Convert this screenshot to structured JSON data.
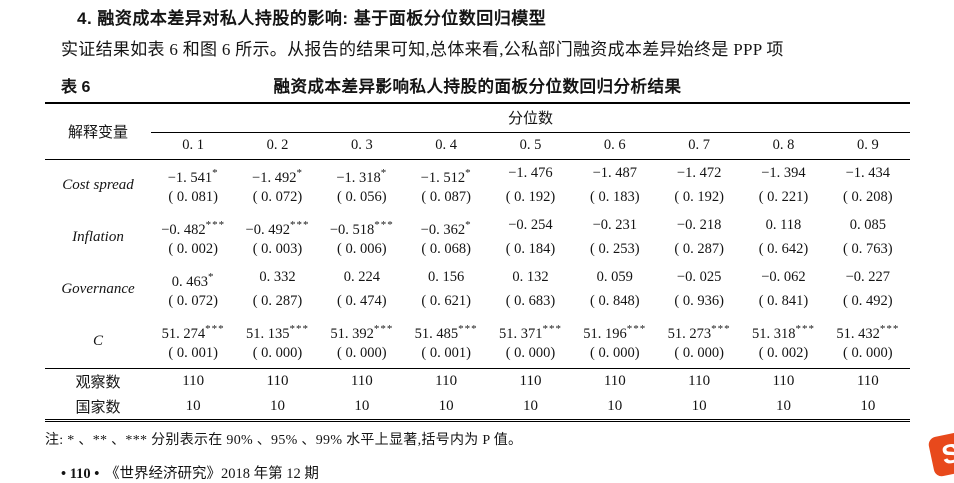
{
  "document": {
    "section_heading": "4. 融资成本差异对私人持股的影响: 基于面板分位数回归模型",
    "paragraph": "实证结果如表 6 和图 6 所示。从报告的结果可知,总体来看,公私部门融资成本差异始终是 PPP 项",
    "table_label": "表 6",
    "table_title": "融资成本差异影响私人持股的面板分位数回归分析结果",
    "note": "注: * 、** 、*** 分别表示在 90% 、95% 、99% 水平上显著,括号内为 P 值。",
    "footer_page_marker": "• 110 •",
    "footer_journal": "《世界经济研究》2018 年第 12 期"
  },
  "table": {
    "header_left": "解释变量",
    "header_group": "分位数",
    "quantiles": [
      "0. 1",
      "0. 2",
      "0. 3",
      "0. 4",
      "0. 5",
      "0. 6",
      "0. 7",
      "0. 8",
      "0. 9"
    ],
    "rows": [
      {
        "label": "Cost spread",
        "coefs": [
          "−1. 541",
          "−1. 492",
          "−1. 318",
          "−1. 512",
          "−1. 476",
          "−1. 487",
          "−1. 472",
          "−1. 394",
          "−1. 434"
        ],
        "stars": [
          "*",
          "*",
          "*",
          "*",
          "",
          "",
          "",
          "",
          ""
        ],
        "pvalues": [
          "( 0. 081)",
          "( 0. 072)",
          "( 0. 056)",
          "( 0. 087)",
          "( 0. 192)",
          "( 0. 183)",
          "( 0. 192)",
          "( 0. 221)",
          "( 0. 208)"
        ]
      },
      {
        "label": "Inflation",
        "coefs": [
          "−0. 482",
          "−0. 492",
          "−0. 518",
          "−0. 362",
          "−0. 254",
          "−0. 231",
          "−0. 218",
          "0. 118",
          "0. 085"
        ],
        "stars": [
          "***",
          "***",
          "***",
          "*",
          "",
          "",
          "",
          "",
          ""
        ],
        "pvalues": [
          "( 0. 002)",
          "( 0. 003)",
          "( 0. 006)",
          "( 0. 068)",
          "( 0. 184)",
          "( 0. 253)",
          "( 0. 287)",
          "( 0. 642)",
          "( 0. 763)"
        ]
      },
      {
        "label": "Governance",
        "coefs": [
          "0. 463",
          "0. 332",
          "0. 224",
          "0. 156",
          "0. 132",
          "0. 059",
          "−0. 025",
          "−0. 062",
          "−0. 227"
        ],
        "stars": [
          "*",
          "",
          "",
          "",
          "",
          "",
          "",
          "",
          ""
        ],
        "pvalues": [
          "( 0. 072)",
          "( 0. 287)",
          "( 0. 474)",
          "( 0. 621)",
          "( 0. 683)",
          "( 0. 848)",
          "( 0. 936)",
          "( 0. 841)",
          "( 0. 492)"
        ]
      },
      {
        "label": "C",
        "coefs": [
          "51. 274",
          "51. 135",
          "51. 392",
          "51. 485",
          "51. 371",
          "51. 196",
          "51. 273",
          "51. 318",
          "51. 432"
        ],
        "stars": [
          "***",
          "***",
          "***",
          "***",
          "***",
          "***",
          "***",
          "***",
          "***"
        ],
        "pvalues": [
          "( 0. 001)",
          "( 0. 000)",
          "( 0. 000)",
          "( 0. 001)",
          "( 0. 000)",
          "( 0. 000)",
          "( 0. 000)",
          "( 0. 002)",
          "( 0. 000)"
        ]
      }
    ],
    "summary_rows": [
      {
        "label": "观察数",
        "values": [
          "110",
          "110",
          "110",
          "110",
          "110",
          "110",
          "110",
          "110",
          "110"
        ]
      },
      {
        "label": "国家数",
        "values": [
          "10",
          "10",
          "10",
          "10",
          "10",
          "10",
          "10",
          "10",
          "10"
        ]
      }
    ]
  },
  "logo": {
    "glyph": "S",
    "color": "#e8491c"
  }
}
